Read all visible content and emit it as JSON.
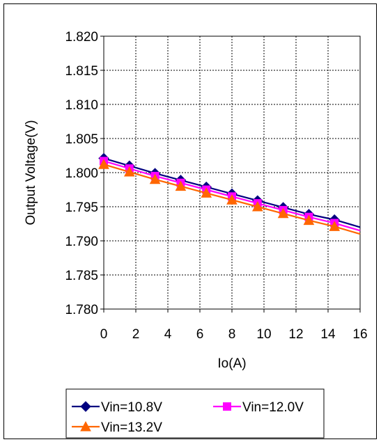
{
  "chart_data": {
    "type": "line",
    "title": "",
    "xlabel": "Io(A)",
    "ylabel": "Output Voltage(V)",
    "xlim": [
      0,
      16
    ],
    "ylim": [
      1.78,
      1.82
    ],
    "x_ticks": [
      "0",
      "2",
      "4",
      "6",
      "8",
      "10",
      "12",
      "14",
      "16"
    ],
    "y_ticks": [
      "1.820",
      "1.815",
      "1.810",
      "1.805",
      "1.800",
      "1.795",
      "1.790",
      "1.785",
      "1.780"
    ],
    "grid": true,
    "legend_position": "bottom",
    "series": [
      {
        "name": "Vin=10.8V",
        "color": "#000080",
        "marker": "diamond",
        "x": [
          0,
          1.6,
          3.2,
          4.8,
          6.4,
          8.0,
          9.6,
          11.2,
          12.8,
          14.4,
          16
        ],
        "y": [
          1.8021,
          1.801,
          1.7999,
          1.7989,
          1.7979,
          1.7969,
          1.7959,
          1.7949,
          1.7939,
          1.7931,
          1.792
        ],
        "marker_indices": [
          0,
          1,
          2,
          3,
          4,
          5,
          6,
          7,
          8,
          9
        ]
      },
      {
        "name": "Vin=12.0V",
        "color": "#FF00FF",
        "marker": "square",
        "x": [
          0,
          1.6,
          3.2,
          4.8,
          6.4,
          8.0,
          9.6,
          11.2,
          12.8,
          14.4,
          16
        ],
        "y": [
          1.8017,
          1.8006,
          1.7995,
          1.7985,
          1.7975,
          1.7965,
          1.7955,
          1.7945,
          1.7935,
          1.7926,
          1.7915
        ],
        "marker_indices": [
          0,
          1,
          2,
          3,
          4,
          5,
          6,
          7,
          8,
          9
        ]
      },
      {
        "name": "Vin=13.2V",
        "color": "#FF6600",
        "marker": "triangle",
        "x": [
          0,
          1.6,
          3.2,
          4.8,
          6.4,
          8.0,
          9.6,
          11.2,
          12.8,
          14.4,
          16
        ],
        "y": [
          1.8012,
          1.8001,
          1.799,
          1.798,
          1.797,
          1.796,
          1.795,
          1.794,
          1.793,
          1.7921,
          1.791
        ],
        "marker_indices": [
          0,
          1,
          2,
          3,
          4,
          5,
          6,
          7,
          8,
          9
        ]
      }
    ]
  }
}
